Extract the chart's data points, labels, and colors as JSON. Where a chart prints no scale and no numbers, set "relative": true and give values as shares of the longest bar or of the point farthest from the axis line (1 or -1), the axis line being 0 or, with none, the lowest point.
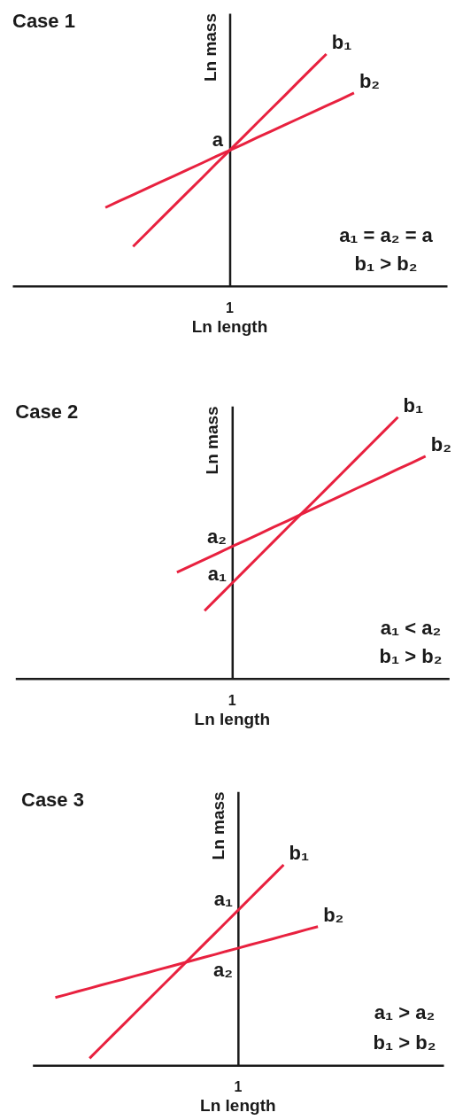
{
  "chart_data": [
    {
      "type": "line",
      "title": "Case 1",
      "xlabel": "Ln length",
      "ylabel": "Ln mass",
      "relative": true,
      "categories": [
        null,
        null,
        null,
        null,
        null,
        null,
        null,
        null,
        null,
        null,
        null,
        null,
        null,
        null,
        null,
        null,
        null,
        null,
        null,
        null,
        null,
        null,
        null,
        null,
        null,
        null,
        null,
        null,
        null,
        null,
        null
      ],
      "series": [
        {
          "name": "b₁",
          "color": "#e8213f",
          "values": [
            null,
            null,
            null,
            null,
            null,
            null,
            null,
            null,
            0.17,
            0.229,
            0.289,
            0.348,
            0.407,
            0.466,
            0.526,
            0.585,
            0.644,
            0.704,
            0.763,
            0.822,
            0.882,
            0.941,
            1,
            null,
            null,
            null,
            null,
            null,
            null,
            null,
            null
          ]
        },
        {
          "name": "b₂",
          "color": "#e8213f",
          "values": [
            null,
            null,
            null,
            null,
            null,
            null,
            0.338,
            0.366,
            0.393,
            0.421,
            0.448,
            0.475,
            0.503,
            0.53,
            0.558,
            0.585,
            0.612,
            0.64,
            0.667,
            0.695,
            0.722,
            0.749,
            0.777,
            0.804,
            0.832,
            null,
            null,
            null,
            null,
            null,
            null
          ]
        }
      ],
      "annotations": [
        "a",
        "1",
        "a₁ = a₂ = a",
        "b₁ > b₂"
      ]
    },
    {
      "type": "line",
      "title": "Case 2",
      "xlabel": "Ln length",
      "ylabel": "Ln mass",
      "relative": true,
      "categories": [
        null,
        null,
        null,
        null,
        null,
        null,
        null,
        null,
        null,
        null,
        null,
        null,
        null,
        null,
        null,
        null,
        null,
        null,
        null,
        null,
        null,
        null,
        null,
        null,
        null,
        null,
        null,
        null,
        null,
        null,
        null
      ],
      "series": [
        {
          "name": "b₁",
          "color": "#e8213f",
          "values": [
            null,
            null,
            null,
            null,
            null,
            null,
            null,
            null,
            null,
            null,
            null,
            null,
            null,
            0.259,
            0.312,
            0.365,
            0.418,
            0.471,
            0.524,
            0.577,
            0.63,
            0.682,
            0.735,
            0.788,
            0.841,
            0.894,
            0.947,
            1,
            null,
            null,
            null
          ]
        },
        {
          "name": "b₂",
          "color": "#e8213f",
          "values": [
            null,
            null,
            null,
            null,
            null,
            null,
            null,
            null,
            null,
            null,
            null,
            0.406,
            0.431,
            0.455,
            0.48,
            0.505,
            0.529,
            0.554,
            0.579,
            0.603,
            0.628,
            0.653,
            0.677,
            0.702,
            0.727,
            0.751,
            0.776,
            0.801,
            0.825,
            0.85,
            null
          ]
        }
      ],
      "annotations": [
        "a₂",
        "a₁",
        "1",
        "a₁ < a₂",
        "b₁ > b₂"
      ]
    },
    {
      "type": "line",
      "title": "Case 3",
      "xlabel": "Ln length",
      "ylabel": "Ln mass",
      "relative": true,
      "categories": [
        null,
        null,
        null,
        null,
        null,
        null,
        null,
        null,
        null,
        null,
        null,
        null,
        null,
        null,
        null,
        null,
        null,
        null,
        null,
        null,
        null,
        null,
        null,
        null,
        null,
        null,
        null,
        null,
        null,
        null,
        null,
        null,
        null,
        null,
        null,
        null,
        null
      ],
      "series": [
        {
          "name": "b₁",
          "color": "#e8213f",
          "values": [
            null,
            null,
            null,
            null,
            null,
            0.035,
            0.092,
            0.149,
            0.205,
            0.262,
            0.319,
            0.376,
            0.432,
            0.489,
            0.546,
            0.603,
            0.659,
            0.716,
            0.773,
            0.83,
            0.887,
            0.943,
            1,
            null,
            null,
            null,
            null,
            null,
            null,
            null,
            null,
            null,
            null,
            null,
            null,
            null,
            null
          ]
        },
        {
          "name": "b₂",
          "color": "#e8213f",
          "values": [
            null,
            null,
            0.338,
            0.353,
            0.369,
            0.384,
            0.4,
            0.415,
            0.43,
            0.446,
            0.461,
            0.477,
            0.492,
            0.507,
            0.523,
            0.538,
            0.553,
            0.569,
            0.584,
            0.6,
            0.615,
            0.63,
            0.646,
            0.661,
            0.677,
            0.692,
            null,
            null,
            null,
            null,
            null,
            null,
            null,
            null,
            null,
            null,
            null
          ]
        }
      ],
      "annotations": [
        "a₁",
        "a₂",
        "1",
        "a₁ > a₂",
        "b₁ > b₂"
      ]
    }
  ]
}
